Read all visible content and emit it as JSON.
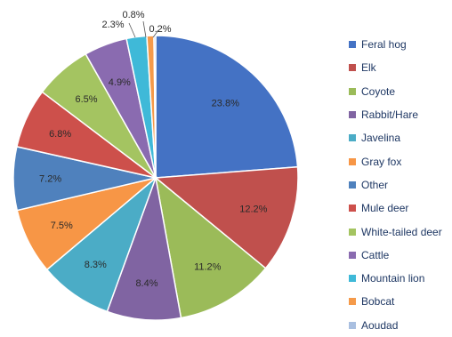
{
  "chart_data": {
    "type": "pie",
    "title": "",
    "legend_position": "right",
    "slices": [
      {
        "label": "Feral hog",
        "value": 23.8,
        "value_label": "23.8%",
        "color": "#4472c4"
      },
      {
        "label": "Elk",
        "value": 12.2,
        "value_label": "12.2%",
        "color": "#c0504d"
      },
      {
        "label": "Coyote",
        "value": 11.2,
        "value_label": "11.2%",
        "color": "#9bbb59"
      },
      {
        "label": "Rabbit/Hare",
        "value": 8.4,
        "value_label": "8.4%",
        "color": "#8064a2"
      },
      {
        "label": "Javelina",
        "value": 8.3,
        "value_label": "8.3%",
        "color": "#4bacc6"
      },
      {
        "label": "Gray fox",
        "value": 7.5,
        "value_label": "7.5%",
        "color": "#f79646"
      },
      {
        "label": "Other",
        "value": 7.2,
        "value_label": "7.2%",
        "color": "#4f81bd"
      },
      {
        "label": "Mule deer",
        "value": 6.8,
        "value_label": "6.8%",
        "color": "#cd504b"
      },
      {
        "label": "White-tailed deer",
        "value": 6.5,
        "value_label": "6.5%",
        "color": "#a4c461"
      },
      {
        "label": "Cattle",
        "value": 4.9,
        "value_label": "4.9%",
        "color": "#8a6bb0"
      },
      {
        "label": "Mountain lion",
        "value": 2.3,
        "value_label": "2.3%",
        "color": "#3fb9d8"
      },
      {
        "label": "Bobcat",
        "value": 0.8,
        "value_label": "0.8%",
        "color": "#f59a4a"
      },
      {
        "label": "Aoudad",
        "value": 0.2,
        "value_label": "0.2%",
        "color": "#a9bfe0"
      }
    ]
  }
}
